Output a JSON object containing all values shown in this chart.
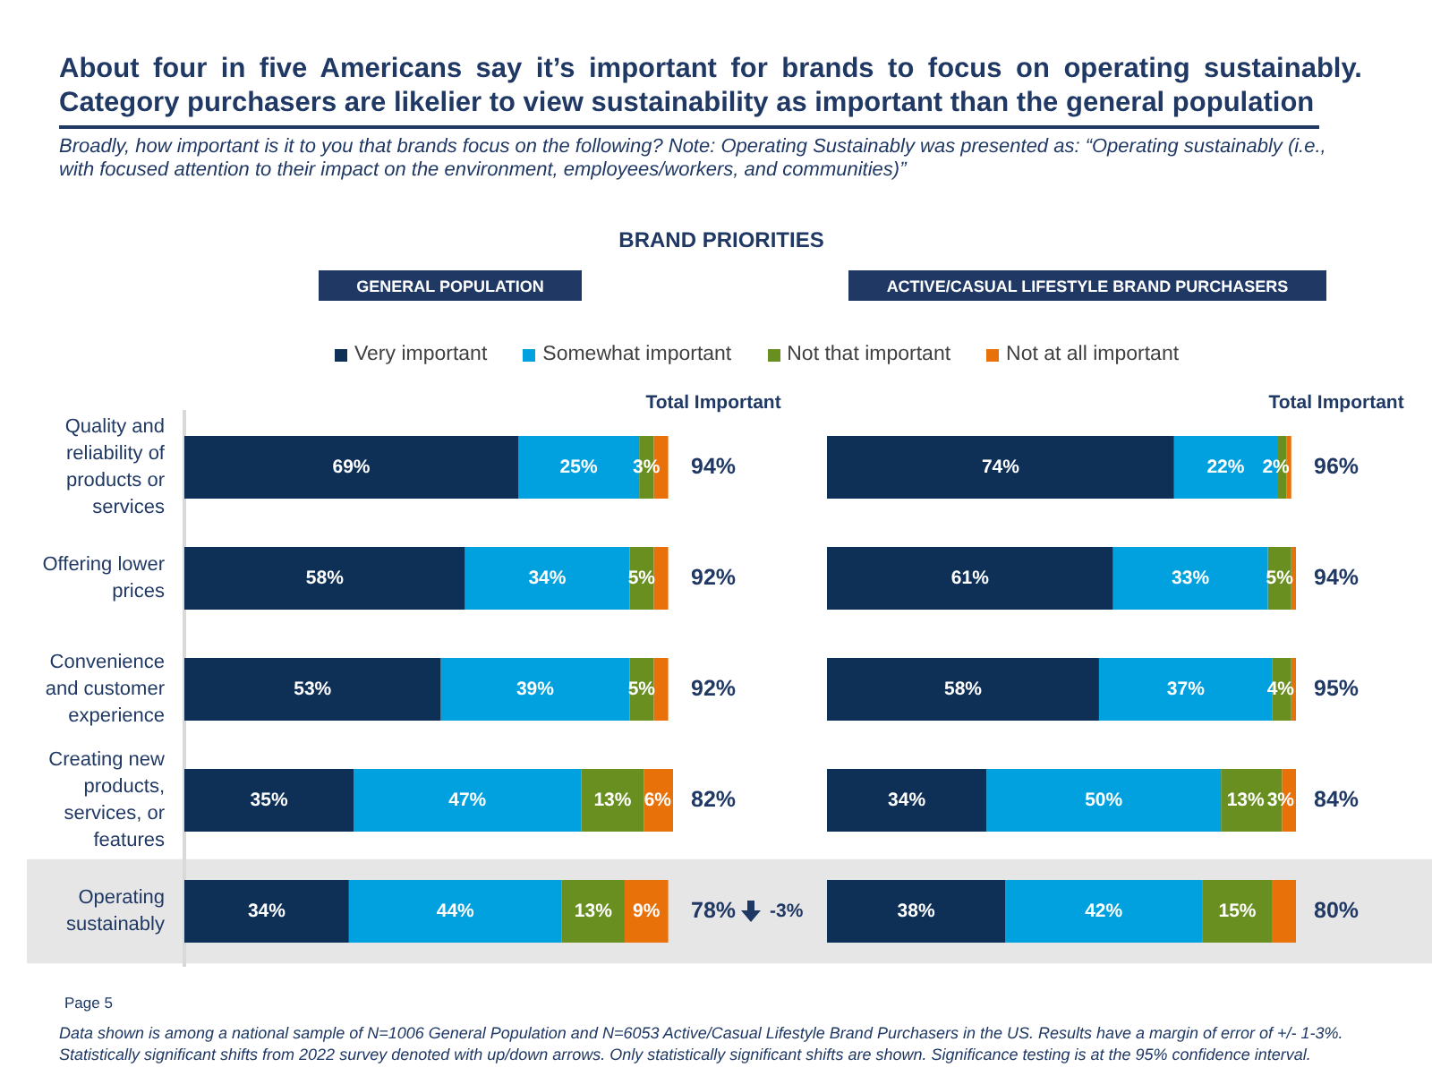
{
  "chart_data": [
    {
      "type": "other",
      "title": "About four in five Americans say it’s important for brands to focus on operating sustainably. Category purchasers are likelier to view sustainability as important than the general population",
      "subtitle": "Broadly, how important is it to you that brands focus on the following? Note: Operating Sustainably was presented as: “Operating sustainably (i.e., with focused attention to their impact on the environment, employees/workers, and communities)”",
      "annotations": [
        "BRAND PRIORITIES",
        "Page 5",
        "Data shown is among a national sample of N=1006 General Population and N=6053 Active/Casual Lifestyle Brand Purchasers in the US. Results have a margin of error of +/- 1-3%.",
        "Statistically significant shifts from 2022 survey denoted with up/down arrows. Only statistically significant shifts are shown. Significance testing is at the 95% confidence interval."
      ]
    },
    {
      "type": "bar",
      "title": "GENERAL POPULATION",
      "orientation": "horizontal",
      "stacked": true,
      "legend": "top",
      "tick_labels": "y",
      "categories": [
        "Quality and reliability of products or services",
        "Offering lower prices",
        "Convenience and customer experience",
        "Creating new products, services, or features",
        "Operating sustainably"
      ],
      "series": [
        {
          "name": "Very important",
          "color": "#0e2f56",
          "values": [
            69,
            58,
            53,
            35,
            34
          ],
          "value_labels": [
            "69%",
            "58%",
            "53%",
            "35%",
            "34%"
          ]
        },
        {
          "name": "Somewhat important",
          "color": "#00a1de",
          "values": [
            25,
            34,
            39,
            47,
            44
          ],
          "value_labels": [
            "25%",
            "34%",
            "39%",
            "47%",
            "44%"
          ]
        },
        {
          "name": "Not that important",
          "color": "#688f1f",
          "values": [
            3,
            5,
            5,
            13,
            13
          ],
          "value_labels": [
            "3%",
            "5%",
            "5%",
            "13%",
            "13%"
          ]
        },
        {
          "name": "Not at all important",
          "color": "#e8710a",
          "values": [
            3,
            3,
            3,
            6,
            9
          ],
          "value_labels": [
            null,
            null,
            null,
            "6%",
            "9%"
          ]
        }
      ],
      "annotations": [
        "Total Important",
        "94%",
        "92%",
        "92%",
        "82%",
        "78%",
        "-3%"
      ],
      "bands": [
        {
          "axis": "y",
          "from": "Operating sustainably",
          "to": "Operating sustainably",
          "color": "#e7e6e6"
        }
      ]
    },
    {
      "type": "bar",
      "title": "ACTIVE/CASUAL LIFESTYLE BRAND PURCHASERS",
      "orientation": "horizontal",
      "stacked": true,
      "tick_labels": false,
      "categories": [
        "Quality and reliability of products or services",
        "Offering lower prices",
        "Convenience and customer experience",
        "Creating new products, services, or features",
        "Operating sustainably"
      ],
      "series": [
        {
          "color": "#0e2f56",
          "values": [
            74,
            61,
            58,
            34,
            38
          ],
          "value_labels": [
            "74%",
            "61%",
            "58%",
            "34%",
            "38%"
          ]
        },
        {
          "color": "#00a1de",
          "values": [
            22,
            33,
            37,
            50,
            42
          ],
          "value_labels": [
            "22%",
            "33%",
            "37%",
            "50%",
            "42%"
          ]
        },
        {
          "color": "#688f1f",
          "values": [
            2,
            5,
            4,
            13,
            15
          ],
          "value_labels": [
            "2%",
            "5%",
            "4%",
            "13%",
            "15%"
          ]
        },
        {
          "color": "#e8710a",
          "values": [
            1,
            1,
            1,
            3,
            5
          ],
          "value_labels": [
            null,
            null,
            null,
            "3%",
            null
          ]
        }
      ],
      "annotations": [
        "Total Important",
        "96%",
        "94%",
        "95%",
        "84%",
        "80%"
      ],
      "bands": [
        {
          "axis": "y",
          "from": "Operating sustainably",
          "to": "Operating sustainably",
          "color": "#e7e6e6"
        }
      ]
    }
  ]
}
